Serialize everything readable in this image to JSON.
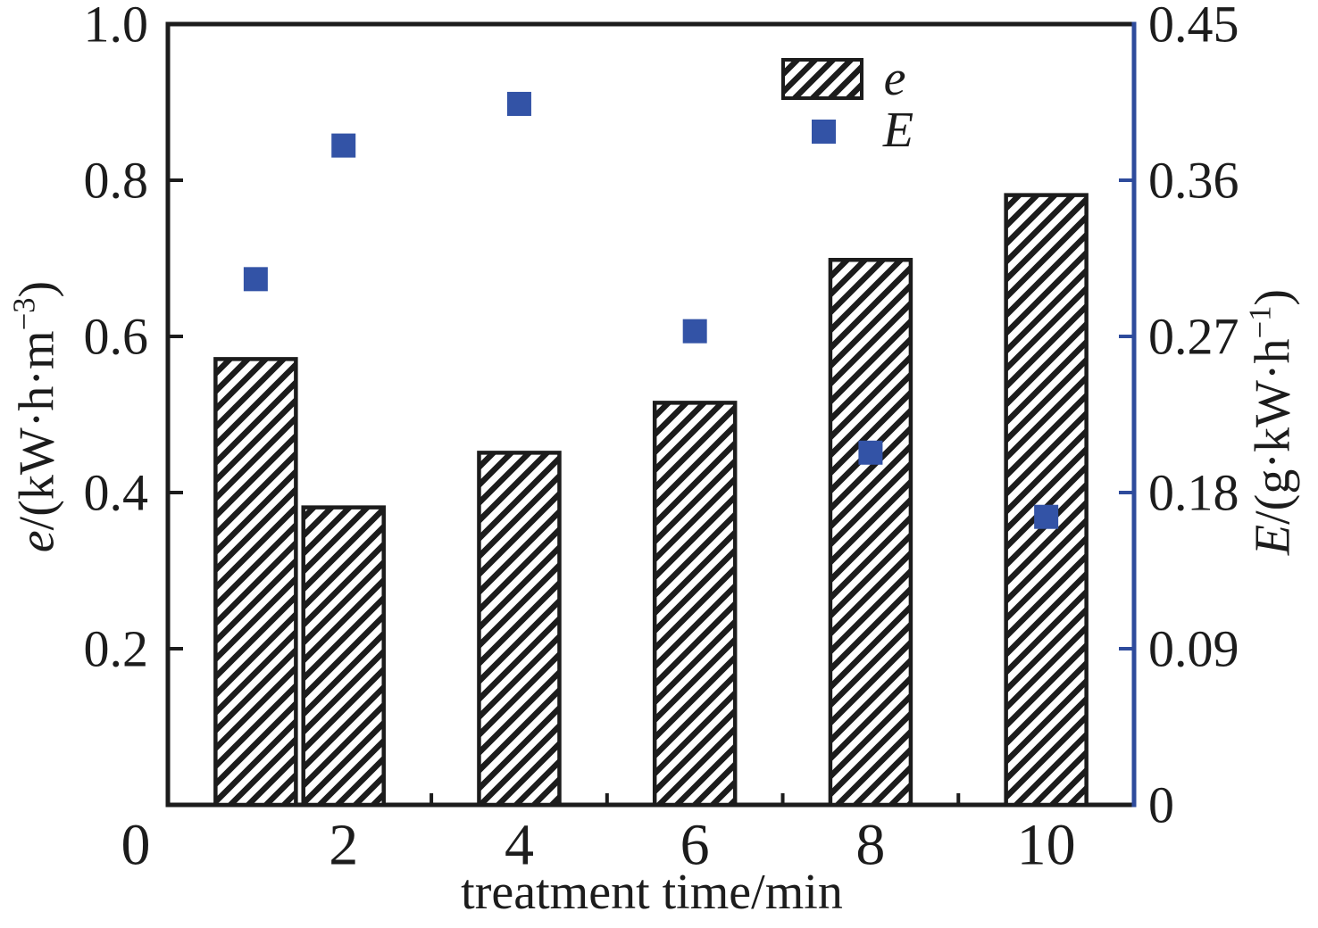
{
  "figure": {
    "background": "#ffffff",
    "colors": {
      "ink": "#1c1c1c",
      "marker_blue": "#3353a6",
      "right_axis_blue": "#2e4b9c"
    }
  },
  "chart_data": {
    "type": "bar+scatter",
    "title": "",
    "xlabel": "treatment time/min",
    "ylabel_left": "e/(kW·h·m⁻³)",
    "ylabel_right": "E/(g·kW·h⁻¹)",
    "x": [
      1,
      2,
      4,
      6,
      8,
      10
    ],
    "series": [
      {
        "name": "e",
        "type": "bar",
        "axis": "left",
        "swatch": "hatched-bar",
        "values": [
          0.571,
          0.381,
          0.451,
          0.515,
          0.698,
          0.781
        ]
      },
      {
        "name": "E",
        "type": "scatter",
        "axis": "right",
        "swatch": "blue-square",
        "values": [
          0.303,
          0.38,
          0.404,
          0.273,
          0.203,
          0.166
        ]
      }
    ],
    "x_axis": {
      "min": 0,
      "max": 11,
      "major_ticks": [
        0,
        2,
        4,
        6,
        8,
        10
      ],
      "tick_labels": [
        "0",
        "2",
        "4",
        "6",
        "8",
        "10"
      ],
      "minor_ticks": [
        1,
        3,
        5,
        7,
        9
      ]
    },
    "left_axis": {
      "min": 0,
      "max": 1.0,
      "ticks": [
        0.2,
        0.4,
        0.6,
        0.8,
        1.0
      ],
      "tick_labels": [
        "0.2",
        "0.4",
        "0.6",
        "0.8",
        "1.0"
      ]
    },
    "right_axis": {
      "min": 0,
      "max": 0.45,
      "ticks": [
        0,
        0.09,
        0.18,
        0.27,
        0.36,
        0.45
      ],
      "tick_labels": [
        "0",
        "0.09",
        "0.18",
        "0.27",
        "0.36",
        "0.45"
      ]
    },
    "legend": {
      "position": "top-right-inside",
      "items": [
        {
          "swatch": "hatched-bar",
          "label": "e"
        },
        {
          "swatch": "blue-square",
          "label": "E"
        }
      ]
    },
    "grid": false
  },
  "labels": {
    "left_title_parts": [
      {
        "t": "e",
        "s": "i"
      },
      {
        "t": "/(kW·h·m",
        "s": ""
      },
      {
        "t": "−3",
        "s": "sup"
      },
      {
        "t": ")",
        "s": ""
      }
    ],
    "right_title_parts": [
      {
        "t": "E",
        "s": "i"
      },
      {
        "t": "/(g·kW·h",
        "s": ""
      },
      {
        "t": "−1",
        "s": "sup"
      },
      {
        "t": ")",
        "s": ""
      }
    ]
  }
}
